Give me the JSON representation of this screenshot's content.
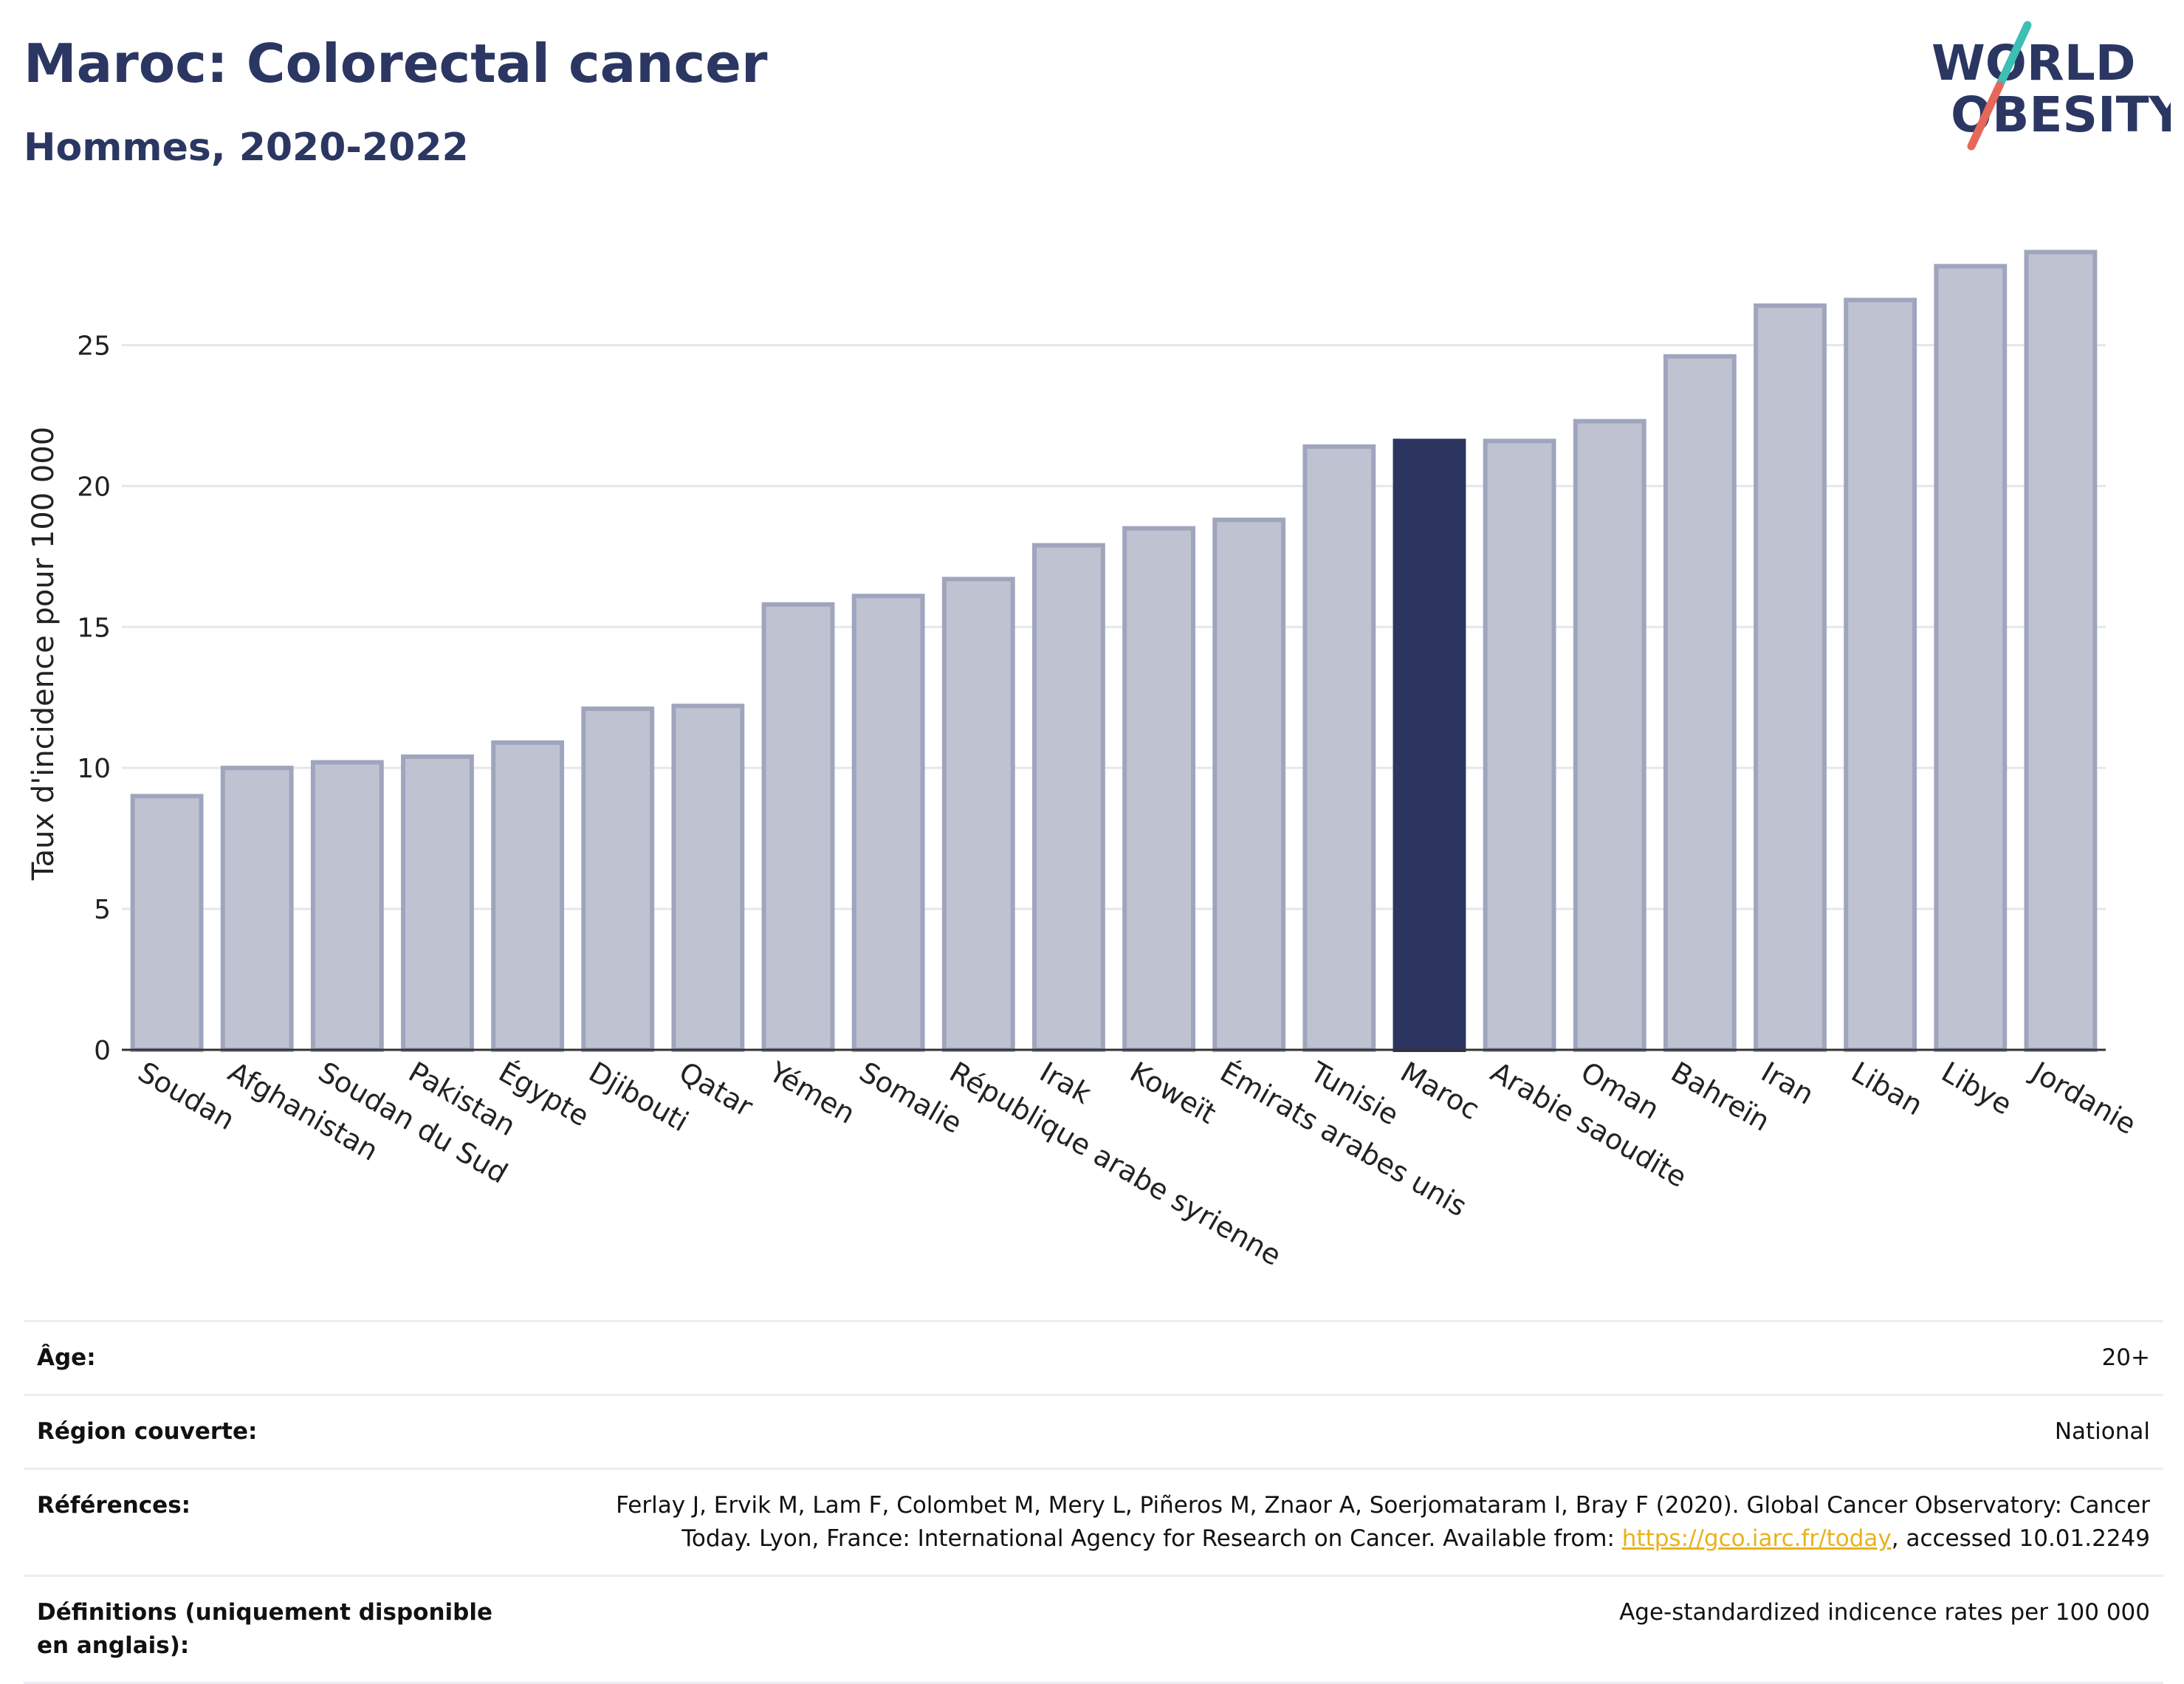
{
  "header": {
    "title": "Maroc: Colorectal cancer",
    "subtitle": "Hommes, 2020-2022",
    "logo_line1": "WORLD",
    "logo_line2": "OBESITY"
  },
  "colors": {
    "highlight_bar": "#2b3560",
    "other_bar_fill": "#bfc3d1",
    "other_bar_stroke": "#9fa5bd",
    "title": "#2b3762",
    "link": "#e8b21a",
    "logo_teal": "#3dbfb4",
    "logo_coral": "#e5685a"
  },
  "chart_data": {
    "type": "bar",
    "ylabel": "Taux d'incidence pour 100 000",
    "xlabel": "",
    "ylim": [
      0,
      28.6
    ],
    "yticks": [
      0,
      5,
      10,
      15,
      20,
      25
    ],
    "grid": true,
    "highlight": "Maroc",
    "categories": [
      "Soudan",
      "Afghanistan",
      "Soudan du Sud",
      "Pakistan",
      "Égypte",
      "Djibouti",
      "Qatar",
      "Yémen",
      "Somalie",
      "République arabe syrienne",
      "Irak",
      "Koweït",
      "Émirats arabes unis",
      "Tunisie",
      "Maroc",
      "Arabie saoudite",
      "Oman",
      "Bahreïn",
      "Iran",
      "Liban",
      "Libye",
      "Jordanie"
    ],
    "values": [
      9.0,
      10.0,
      10.2,
      10.4,
      10.9,
      12.1,
      12.2,
      15.8,
      16.1,
      16.7,
      17.9,
      18.5,
      18.8,
      21.4,
      21.6,
      21.6,
      22.3,
      24.6,
      26.4,
      26.6,
      27.8,
      28.3
    ]
  },
  "info": {
    "rows": [
      {
        "label": "Âge:",
        "value": "20+"
      },
      {
        "label": "Région couverte:",
        "value": "National"
      },
      {
        "label": "Références:",
        "value_pre": "Ferlay J, Ervik M, Lam F, Colombet M, Mery L, Piñeros M, Znaor A, Soerjomataram I, Bray F (2020). Global Cancer Observatory: Cancer Today. Lyon, France: International Agency for Research on Cancer. Available from: ",
        "link": "https://gco.iarc.fr/today",
        "value_post": ", accessed 10.01.2249"
      },
      {
        "label": "Définitions (uniquement disponible en anglais):",
        "value": "Age-standardized indicence rates per 100 000"
      }
    ]
  }
}
